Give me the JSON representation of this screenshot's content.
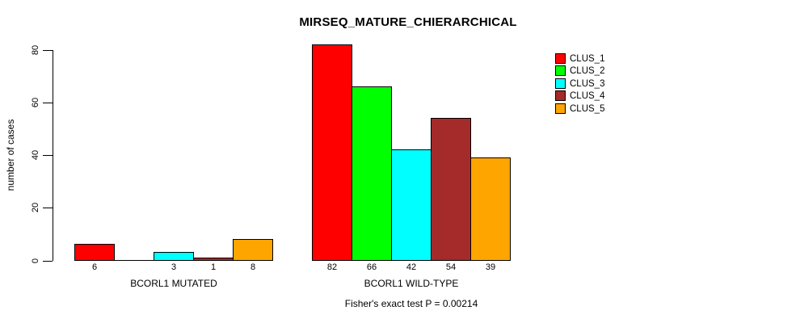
{
  "title": "MIRSEQ_MATURE_CHIERARCHICAL",
  "y_axis_label": "number of cases",
  "footnote": "Fisher's exact test P = 0.00214",
  "chart_data": {
    "type": "bar",
    "title": "MIRSEQ_MATURE_CHIERARCHICAL",
    "xlabel": "",
    "ylabel": "number of cases",
    "ylim": [
      0,
      85
    ],
    "yticks": [
      0,
      20,
      40,
      60,
      80
    ],
    "grid": false,
    "legend_position": "right",
    "categories": [
      "BCORL1 MUTATED",
      "BCORL1 WILD-TYPE"
    ],
    "series": [
      {
        "name": "CLUS_1",
        "color": "#ff0000",
        "values": [
          6,
          82
        ]
      },
      {
        "name": "CLUS_2",
        "color": "#00ff00",
        "values": [
          0,
          66
        ]
      },
      {
        "name": "CLUS_3",
        "color": "#00ffff",
        "values": [
          3,
          42
        ]
      },
      {
        "name": "CLUS_4",
        "color": "#a52a2a",
        "values": [
          1,
          54
        ]
      },
      {
        "name": "CLUS_5",
        "color": "#ffa500",
        "values": [
          8,
          39
        ]
      }
    ],
    "bar_value_labels": [
      [
        "6",
        "",
        "3",
        "1",
        "8"
      ],
      [
        "82",
        "66",
        "42",
        "54",
        "39"
      ]
    ],
    "annotation": "Fisher's exact test P = 0.00214"
  }
}
